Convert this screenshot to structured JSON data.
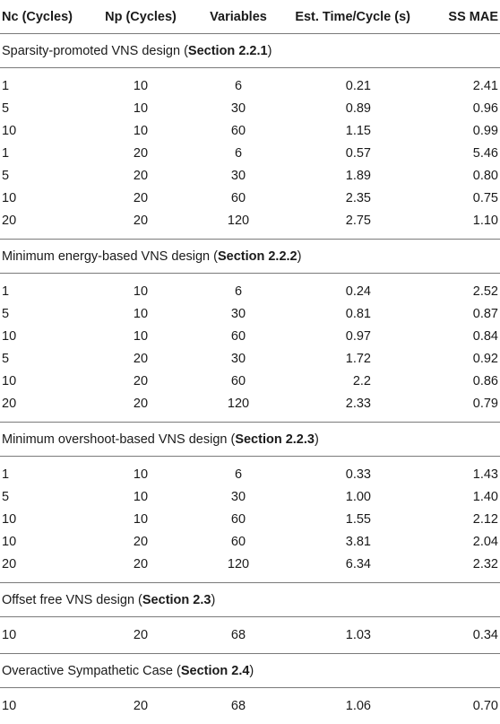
{
  "headers": [
    "Nc (Cycles)",
    "Np (Cycles)",
    "Variables",
    "Est. Time/Cycle (s)",
    "SS MAE"
  ],
  "sections": [
    {
      "title": "Sparsity-promoted VNS design (",
      "ref": "Section 2.2.1",
      "close": ")",
      "rows": [
        [
          "1",
          "10",
          "6",
          "0.21",
          "2.41"
        ],
        [
          "5",
          "10",
          "30",
          "0.89",
          "0.96"
        ],
        [
          "10",
          "10",
          "60",
          "1.15",
          "0.99"
        ],
        [
          "1",
          "20",
          "6",
          "0.57",
          "5.46"
        ],
        [
          "5",
          "20",
          "30",
          "1.89",
          "0.80"
        ],
        [
          "10",
          "20",
          "60",
          "2.35",
          "0.75"
        ],
        [
          "20",
          "20",
          "120",
          "2.75",
          "1.10"
        ]
      ]
    },
    {
      "title": "Minimum energy-based VNS design (",
      "ref": "Section 2.2.2",
      "close": ")",
      "rows": [
        [
          "1",
          "10",
          "6",
          "0.24",
          "2.52"
        ],
        [
          "5",
          "10",
          "30",
          "0.81",
          "0.87"
        ],
        [
          "10",
          "10",
          "60",
          "0.97",
          "0.84"
        ],
        [
          "5",
          "20",
          "30",
          "1.72",
          "0.92"
        ],
        [
          "10",
          "20",
          "60",
          "2.2",
          "0.86"
        ],
        [
          "20",
          "20",
          "120",
          "2.33",
          "0.79"
        ]
      ]
    },
    {
      "title": "Minimum overshoot-based VNS design (",
      "ref": "Section 2.2.3",
      "close": ")",
      "rows": [
        [
          "1",
          "10",
          "6",
          "0.33",
          "1.43"
        ],
        [
          "5",
          "10",
          "30",
          "1.00",
          "1.40"
        ],
        [
          "10",
          "10",
          "60",
          "1.55",
          "2.12"
        ],
        [
          "10",
          "20",
          "60",
          "3.81",
          "2.04"
        ],
        [
          "20",
          "20",
          "120",
          "6.34",
          "2.32"
        ]
      ]
    },
    {
      "title": "Offset free VNS design (",
      "ref": "Section 2.3",
      "close": ")",
      "rows": [
        [
          "10",
          "20",
          "68",
          "1.03",
          "0.34"
        ]
      ]
    },
    {
      "title": "Overactive Sympathetic Case (",
      "ref": "Section 2.4",
      "close": ")",
      "rows": [
        [
          "10",
          "20",
          "68",
          "1.06",
          "0.70"
        ]
      ]
    }
  ]
}
